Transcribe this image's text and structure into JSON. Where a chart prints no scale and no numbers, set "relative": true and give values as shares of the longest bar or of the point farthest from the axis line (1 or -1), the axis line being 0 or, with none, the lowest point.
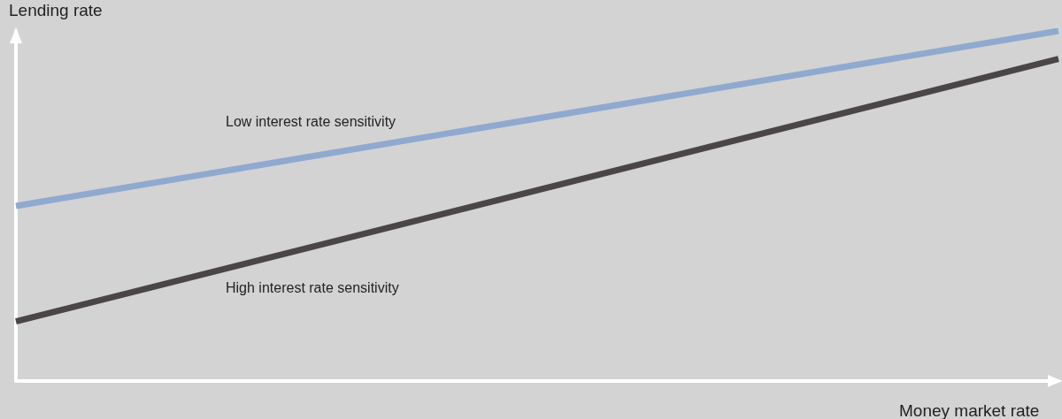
{
  "chart_data": {
    "type": "line",
    "relative": true,
    "xlabel": "Money market rate",
    "ylabel": "Lending rate",
    "categories": [
      null,
      null
    ],
    "grid": false,
    "legend": false,
    "marker": "none",
    "line_style": "solid",
    "series": [
      {
        "name": "Low interest rate sensitivity",
        "color": "#8fa9cf",
        "values": [
          0.5,
          1
        ]
      },
      {
        "name": "High interest rate sensitivity",
        "color": "#4a4546",
        "values": [
          0.17,
          0.92
        ]
      }
    ]
  }
}
